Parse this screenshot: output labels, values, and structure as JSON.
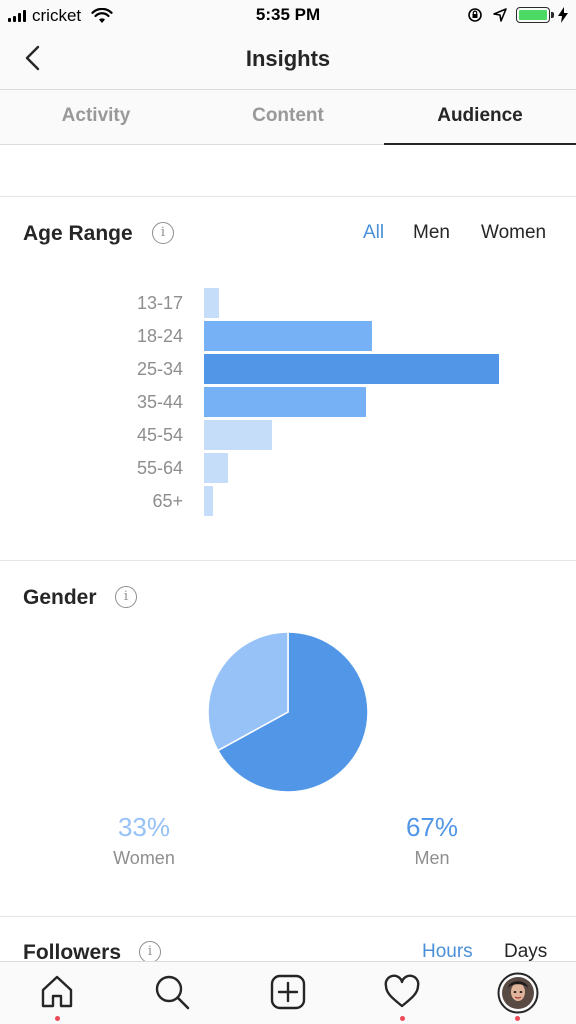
{
  "status_bar": {
    "carrier": "cricket",
    "time": "5:35 PM",
    "battery_color": "#4cd964"
  },
  "header": {
    "title": "Insights",
    "back_icon": "chevron-left-icon"
  },
  "tabs": [
    {
      "label": "Activity",
      "active": false
    },
    {
      "label": "Content",
      "active": false
    },
    {
      "label": "Audience",
      "active": true
    }
  ],
  "age_range": {
    "title": "Age Range",
    "filters": [
      {
        "label": "All",
        "active": true
      },
      {
        "label": "Men",
        "active": false
      },
      {
        "label": "Women",
        "active": false
      }
    ]
  },
  "gender": {
    "title": "Gender",
    "women": {
      "percent": "33%",
      "label": "Women",
      "color": "#96c2f7"
    },
    "men": {
      "percent": "67%",
      "label": "Men",
      "color": "#5296e8"
    }
  },
  "followers": {
    "title": "Followers",
    "filters": [
      {
        "label": "Hours",
        "active": true
      },
      {
        "label": "Days",
        "active": false
      }
    ]
  },
  "chart_data": [
    {
      "type": "bar",
      "orientation": "horizontal",
      "title": "Age Range",
      "categories": [
        "13-17",
        "18-24",
        "25-34",
        "35-44",
        "45-54",
        "55-64",
        "65+"
      ],
      "values": [
        5,
        57,
        100,
        55,
        23,
        8,
        3
      ],
      "colors": [
        "#c6ddfa",
        "#76b0f5",
        "#5296e8",
        "#76b0f5",
        "#c6ddfa",
        "#c6ddfa",
        "#c6ddfa"
      ],
      "grid": false
    },
    {
      "type": "pie",
      "title": "Gender",
      "categories": [
        "Women",
        "Men"
      ],
      "values": [
        33,
        67
      ],
      "colors": [
        "#96c2f7",
        "#5296e8"
      ]
    }
  ],
  "bottom_nav": [
    {
      "icon": "home-icon",
      "notification": true
    },
    {
      "icon": "search-icon",
      "notification": false
    },
    {
      "icon": "add-post-icon",
      "notification": false
    },
    {
      "icon": "heart-icon",
      "notification": true
    },
    {
      "icon": "profile-avatar-icon",
      "notification": true
    }
  ],
  "colors": {
    "accent": "#4a90d9",
    "notification": "#ed4956"
  }
}
